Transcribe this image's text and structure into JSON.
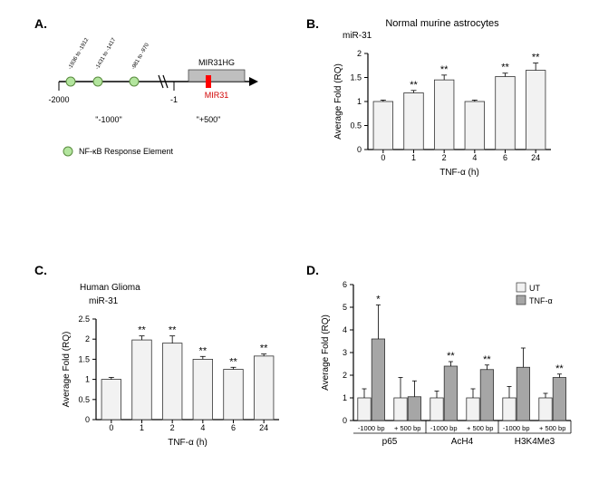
{
  "panelA": {
    "label": "A.",
    "axis_start": "-2000",
    "axis_end": "-1",
    "nfkb_sites": [
      "-1936\nto\n-1912",
      "-1431\nto\n-1417",
      "-981\nto\n-970"
    ],
    "mirna_host": "MIR31HG",
    "mirna": "MIR31",
    "regions": {
      "upstream": "\"-1000\"",
      "downstream": "\"+500\""
    },
    "legend": "NF-κB Response Element",
    "colors": {
      "nfkb_fill": "#b3e59e",
      "nfkb_stroke": "#5a8c3f",
      "host_box": "#bfbfbf",
      "mirna_box": "#ff0000",
      "line": "#000000"
    }
  },
  "panelB": {
    "label": "B.",
    "title": "Normal murine astrocytes",
    "subtitle": "miR-31",
    "y_label": "Average Fold (RQ)",
    "x_label": "TNF-α (h)",
    "categories": [
      "0",
      "1",
      "2",
      "4",
      "6",
      "24"
    ],
    "values": [
      1.0,
      1.18,
      1.45,
      1.0,
      1.52,
      1.65
    ],
    "errors": [
      0.03,
      0.05,
      0.1,
      0.03,
      0.07,
      0.15
    ],
    "sig": [
      "",
      "**",
      "**",
      "",
      "**",
      "**"
    ],
    "ylim": [
      0,
      2.0
    ],
    "yticks": [
      0,
      0.5,
      1,
      1.5,
      2
    ],
    "bar_color": "#f2f2f2",
    "bar_stroke": "#333333",
    "axis_color": "#000000"
  },
  "panelC": {
    "label": "C.",
    "title": "Human Glioma",
    "subtitle": "miR-31",
    "y_label": "Average Fold (RQ)",
    "x_label": "TNF-α (h)",
    "categories": [
      "0",
      "1",
      "2",
      "4",
      "6",
      "24"
    ],
    "values": [
      1.0,
      1.98,
      1.9,
      1.5,
      1.25,
      1.58
    ],
    "errors": [
      0.05,
      0.1,
      0.18,
      0.07,
      0.05,
      0.05
    ],
    "sig": [
      "",
      "**",
      "**",
      "**",
      "**",
      "**"
    ],
    "ylim": [
      0,
      2.5
    ],
    "yticks": [
      0,
      0.5,
      1,
      1.5,
      2,
      2.5
    ],
    "bar_color": "#f2f2f2",
    "bar_stroke": "#333333",
    "axis_color": "#000000"
  },
  "panelD": {
    "label": "D.",
    "y_label": "Average Fold (RQ)",
    "groups": [
      "p65",
      "AcH4",
      "H3K4Me3"
    ],
    "sub_labels": [
      "-1000 bp",
      "+ 500 bp"
    ],
    "legend": {
      "ut": "UT",
      "tnf": "TNF-α"
    },
    "values_ut": [
      1.0,
      1.0,
      1.0,
      1.0,
      1.0,
      1.0
    ],
    "values_tnf": [
      3.6,
      1.05,
      2.4,
      2.25,
      2.35,
      1.9
    ],
    "errors_ut": [
      0.4,
      0.9,
      0.3,
      0.4,
      0.5,
      0.2
    ],
    "errors_tnf": [
      1.5,
      0.7,
      0.2,
      0.2,
      0.85,
      0.15
    ],
    "sig": [
      "*",
      "",
      "**",
      "**",
      "",
      "**"
    ],
    "ylim": [
      0,
      6
    ],
    "yticks": [
      0,
      1,
      2,
      3,
      4,
      5,
      6
    ],
    "colors": {
      "ut": "#f2f2f2",
      "tnf": "#a6a6a6",
      "stroke": "#333333",
      "axis": "#000000"
    }
  }
}
